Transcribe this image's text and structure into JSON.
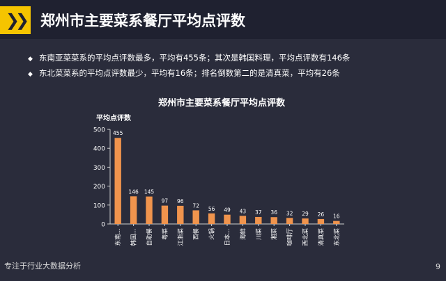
{
  "header": {
    "title": "郑州市主要菜系餐厅平均点评数",
    "icon": "double-chevron-right-icon",
    "accent": "#f5c400"
  },
  "bullets": [
    "东南亚菜菜系的平均点评数最多，平均有455条；其次是韩国料理，平均点评数有146条",
    "东北菜菜系的平均点评数最少，平均有16条；排名倒数第二的是清真菜，平均有26条"
  ],
  "chart_data": {
    "type": "bar",
    "title": "郑州市主要菜系餐厅平均点评数",
    "ylabel": "平均点评数",
    "xlabel": "",
    "ylim": [
      0,
      500
    ],
    "yticks": [
      0,
      100,
      200,
      300,
      400,
      500
    ],
    "categories": [
      "东南…",
      "韩国…",
      "自助餐",
      "粤菜",
      "江浙菜",
      "西餐",
      "火锅",
      "日本…",
      "海鲜",
      "川菜",
      "湘菜",
      "咖啡厅",
      "西北菜",
      "清真菜",
      "东北菜"
    ],
    "values": [
      455,
      146,
      145,
      97,
      96,
      72,
      56,
      49,
      43,
      37,
      36,
      32,
      29,
      26,
      16
    ],
    "bar_color": "#f0944d",
    "grid": false,
    "legend": "none"
  },
  "footer": {
    "left": "专注于行业大数据分析",
    "page": "9"
  }
}
